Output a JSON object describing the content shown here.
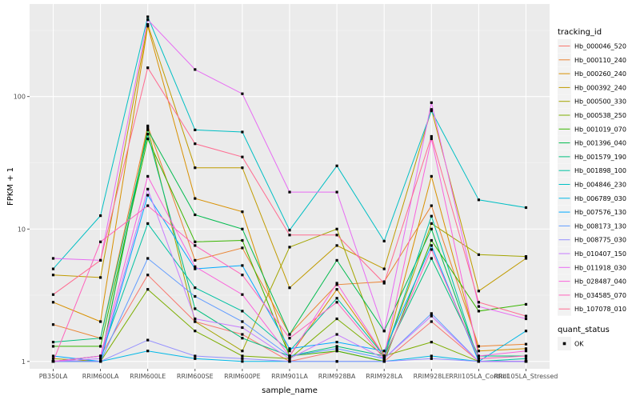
{
  "chart_data": {
    "type": "line",
    "xlabel": "sample_name",
    "ylabel": "FPKM + 1",
    "y_scale": "log10",
    "ylim": [
      0.88,
      500
    ],
    "y_ticks": [
      1,
      10,
      100
    ],
    "y_tick_labels": [
      "1",
      "10",
      "100"
    ],
    "grid": true,
    "background": "#ebebeb",
    "legend_placement": "right",
    "categories": [
      "PB350LA",
      "RRIM600LA",
      "RRIM600LE",
      "RRIM600SE",
      "RRIM600PE",
      "RRIM901LA",
      "RRIM928BA",
      "RRIM928LA",
      "RRIM928LE",
      "RRII105LA_Control",
      "RRII105LA_Stressed"
    ],
    "legend_color_title": "tracking_id",
    "legend_shape_title": "quant_status",
    "legend_shape_label": "OK",
    "series": [
      {
        "name": "Hb_000046_520",
        "color": "#F8766D",
        "values": [
          1.0,
          1.1,
          4.5,
          2.0,
          1.6,
          1.0,
          1.2,
          1.0,
          2.0,
          1.0,
          1.0
        ]
      },
      {
        "name": "Hb_000110_240",
        "color": "#EA8331",
        "values": [
          1.9,
          1.5,
          60,
          5.8,
          7.2,
          1.6,
          3.8,
          4.0,
          15,
          1.3,
          1.35
        ]
      },
      {
        "name": "Hb_000260_240",
        "color": "#D89000",
        "values": [
          2.8,
          2.0,
          340,
          17,
          13.5,
          1.1,
          3.5,
          1.1,
          25,
          1.2,
          1.25
        ]
      },
      {
        "name": "Hb_000392_240",
        "color": "#C09B00",
        "values": [
          4.5,
          4.3,
          350,
          29,
          29,
          3.6,
          7.5,
          5.0,
          80,
          3.4,
          6.0
        ]
      },
      {
        "name": "Hb_000500_330",
        "color": "#A3A500",
        "values": [
          1.05,
          1.0,
          58,
          2.0,
          1.2,
          7.3,
          10,
          1.1,
          11,
          6.4,
          6.2
        ]
      },
      {
        "name": "Hb_000538_250",
        "color": "#7CAE00",
        "values": [
          1.0,
          1.0,
          3.5,
          1.7,
          1.1,
          1.05,
          2.1,
          1.1,
          1.4,
          1.0,
          1.0
        ]
      },
      {
        "name": "Hb_001019_070",
        "color": "#39B600",
        "values": [
          1.3,
          1.3,
          48,
          8.0,
          8.2,
          1.1,
          1.2,
          1.0,
          8.2,
          2.4,
          2.7
        ]
      },
      {
        "name": "Hb_001396_040",
        "color": "#00BB4E",
        "values": [
          1.0,
          1.0,
          56,
          12.8,
          10.0,
          1.6,
          5.8,
          1.7,
          10,
          1.0,
          1.0
        ]
      },
      {
        "name": "Hb_001579_190",
        "color": "#00BF7D",
        "values": [
          1.4,
          1.5,
          52,
          2.5,
          1.5,
          1.1,
          1.3,
          1.1,
          6.0,
          1.1,
          1.1
        ]
      },
      {
        "name": "Hb_001898_100",
        "color": "#00C1A3",
        "values": [
          1.0,
          1.1,
          11,
          3.6,
          2.4,
          1.2,
          3.0,
          1.1,
          12.5,
          1.0,
          1.05
        ]
      },
      {
        "name": "Hb_004846_230",
        "color": "#00BFC4",
        "values": [
          5.0,
          12.6,
          400,
          56,
          54,
          9.8,
          30,
          8.1,
          78,
          16.6,
          14.5
        ]
      },
      {
        "name": "Hb_006789_030",
        "color": "#00B8E7",
        "values": [
          1.0,
          1.0,
          1.2,
          1.05,
          1.0,
          1.0,
          1.0,
          1.0,
          1.1,
          1.0,
          1.7
        ]
      },
      {
        "name": "Hb_007576_130",
        "color": "#00A9FF",
        "values": [
          1.1,
          1.0,
          18,
          5.0,
          5.3,
          1.25,
          1.4,
          1.2,
          7.5,
          1.0,
          1.0
        ]
      },
      {
        "name": "Hb_008173_130",
        "color": "#619CFF",
        "values": [
          1.0,
          1.0,
          6.0,
          3.1,
          2.0,
          1.1,
          1.25,
          1.05,
          2.3,
          1.0,
          1.0
        ]
      },
      {
        "name": "Hb_008775_030",
        "color": "#9590FF",
        "values": [
          1.0,
          1.0,
          1.45,
          1.1,
          1.05,
          1.0,
          1.0,
          1.0,
          1.05,
          1.0,
          1.0
        ]
      },
      {
        "name": "Hb_010407_150",
        "color": "#C77CFF",
        "values": [
          1.0,
          1.05,
          20,
          2.1,
          1.8,
          1.05,
          1.6,
          1.05,
          2.2,
          1.0,
          1.0
        ]
      },
      {
        "name": "Hb_011918_030",
        "color": "#E76BF3",
        "values": [
          6.0,
          5.8,
          380,
          160,
          105,
          19,
          19,
          1.7,
          90,
          2.6,
          2.1
        ]
      },
      {
        "name": "Hb_028487_040",
        "color": "#FA62DB",
        "values": [
          1.0,
          1.1,
          25,
          5.2,
          3.2,
          1.1,
          3.9,
          1.1,
          48,
          1.1,
          1.2
        ]
      },
      {
        "name": "Hb_034585_070",
        "color": "#FF62BC",
        "values": [
          1.0,
          8.0,
          15,
          7.5,
          4.5,
          1.5,
          2.8,
          1.05,
          7.0,
          1.05,
          1.1
        ]
      },
      {
        "name": "Hb_107078_010",
        "color": "#FF6C91",
        "values": [
          3.2,
          5.8,
          165,
          44,
          35,
          9.0,
          9.0,
          3.9,
          50,
          2.8,
          2.2
        ]
      }
    ]
  }
}
